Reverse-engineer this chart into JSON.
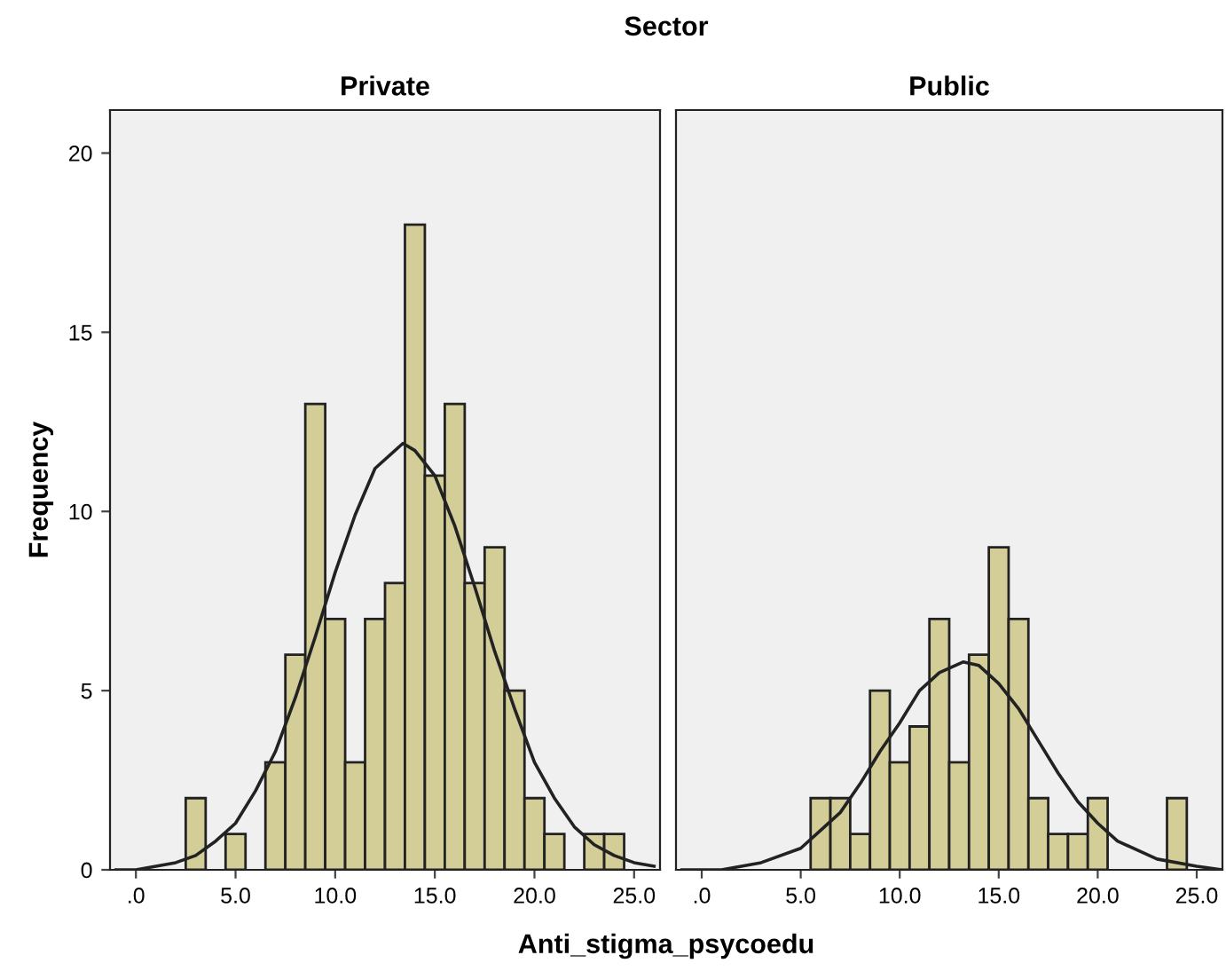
{
  "chart_data": [
    {
      "type": "histogram",
      "title": "Private",
      "xlabel": "Anti_stigma_psycoedu",
      "ylabel": "Frequency",
      "annotations": [
        "Sector"
      ],
      "bins": [
        2.5,
        3.5,
        4.5,
        5.5,
        6.5,
        7.5,
        8.5,
        9.5,
        10.5,
        11.5,
        12.5,
        13.5,
        14.5,
        15.5,
        16.5,
        17.5,
        18.5,
        19.5,
        20.5,
        21.5,
        22.5,
        23.5,
        24.5
      ],
      "values": [
        2,
        0,
        1,
        0,
        3,
        6,
        13,
        7,
        3,
        7,
        8,
        18,
        11,
        13,
        8,
        9,
        5,
        2,
        1,
        0,
        1,
        1
      ],
      "color": "#d3cd97",
      "series": [
        {
          "type": "line",
          "color": "#222222",
          "x": [
            -1,
            0,
            2,
            3,
            4,
            5,
            6,
            7,
            8,
            9,
            10,
            11,
            12,
            13.4,
            14,
            15,
            16,
            17,
            18,
            19,
            20,
            21,
            22,
            23,
            24,
            25,
            26
          ],
          "values": [
            0.0,
            0.0,
            0.2,
            0.4,
            0.8,
            1.3,
            2.2,
            3.3,
            4.8,
            6.5,
            8.3,
            9.9,
            11.2,
            11.9,
            11.7,
            11.0,
            9.6,
            7.9,
            6.1,
            4.5,
            3.0,
            2.0,
            1.2,
            0.7,
            0.4,
            0.2,
            0.1
          ]
        }
      ],
      "xlim": [
        -1.3,
        26.3
      ],
      "xticks": [
        {
          "value": 0,
          "label": ".0"
        },
        {
          "value": 5,
          "label": "5.0"
        },
        {
          "value": 10,
          "label": "10.0"
        },
        {
          "value": 15,
          "label": "15.0"
        },
        {
          "value": 20,
          "label": "20.0"
        },
        {
          "value": 25,
          "label": "25.0"
        }
      ],
      "ylim": [
        0,
        21.2
      ],
      "yticks": [
        0,
        5,
        10,
        15,
        20
      ]
    },
    {
      "type": "histogram",
      "title": "Public",
      "bins": [
        5.5,
        6.5,
        7.5,
        8.5,
        9.5,
        10.5,
        11.5,
        12.5,
        13.5,
        14.5,
        15.5,
        16.5,
        17.5,
        18.5,
        19.5,
        20.5,
        21.5,
        22.5,
        23.5,
        24.5
      ],
      "values": [
        2,
        2,
        1,
        5,
        3,
        4,
        7,
        3,
        6,
        9,
        7,
        2,
        1,
        1,
        2,
        0,
        0,
        0,
        2
      ],
      "color": "#d3cd97",
      "series": [
        {
          "type": "line",
          "color": "#222222",
          "x": [
            -1,
            1,
            3,
            5,
            6,
            7,
            8,
            9,
            10,
            11,
            12,
            13.2,
            14,
            15,
            16,
            17,
            18,
            19,
            20,
            21,
            23,
            25,
            26.3
          ],
          "values": [
            0.0,
            0.0,
            0.2,
            0.6,
            1.1,
            1.6,
            2.4,
            3.3,
            4.1,
            5.0,
            5.5,
            5.8,
            5.7,
            5.2,
            4.5,
            3.6,
            2.7,
            1.9,
            1.3,
            0.8,
            0.3,
            0.1,
            0.0
          ]
        }
      ],
      "xlim": [
        -1.3,
        26.3
      ],
      "xticks": [
        {
          "value": 0,
          "label": ".0"
        },
        {
          "value": 5,
          "label": "5.0"
        },
        {
          "value": 10,
          "label": "10.0"
        },
        {
          "value": 15,
          "label": "15.0"
        },
        {
          "value": 20,
          "label": "20.0"
        },
        {
          "value": 25,
          "label": "25.0"
        }
      ],
      "ylim": [
        0,
        21.2
      ],
      "yticks": [
        0,
        5,
        10,
        15,
        20
      ],
      "tick_labels": "x"
    }
  ]
}
